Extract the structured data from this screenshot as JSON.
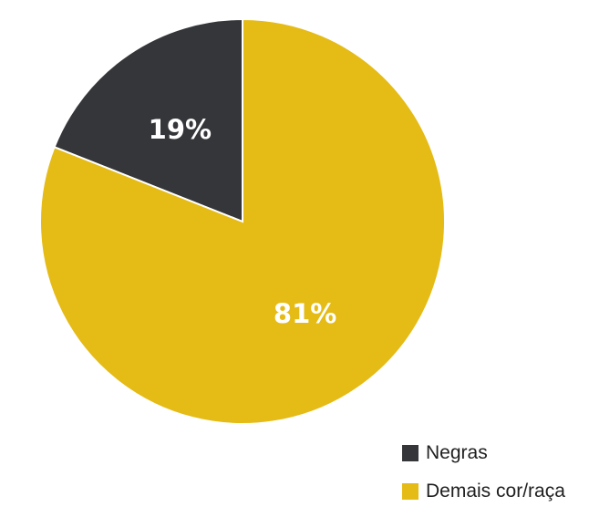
{
  "chart_data": {
    "type": "pie",
    "categories": [
      "Negras",
      "Demais cor/raça"
    ],
    "values": [
      19,
      81
    ],
    "labels": [
      "19%",
      "81%"
    ],
    "colors": [
      "#35363a",
      "#e5bb16"
    ],
    "start": "12 o'clock",
    "direction": "counterclockwise",
    "legend_position": "bottom-right"
  },
  "legend": {
    "items": [
      {
        "label": "Negras",
        "color": "#35363a"
      },
      {
        "label": "Demais cor/raça",
        "color": "#e5bb16"
      }
    ]
  }
}
